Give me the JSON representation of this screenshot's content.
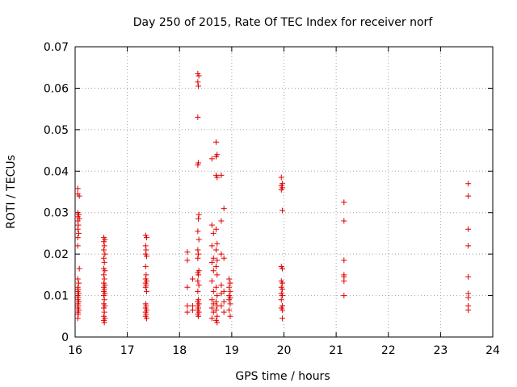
{
  "chart_data": {
    "type": "scatter",
    "title": "Day 250 of 2015, Rate Of TEC Index for receiver norf",
    "xlabel": "GPS time / hours",
    "ylabel": "ROTI / TECUs",
    "xlim": [
      16,
      24
    ],
    "ylim": [
      0,
      0.07
    ],
    "xticks": [
      16,
      17,
      18,
      19,
      20,
      21,
      22,
      23,
      24
    ],
    "xtick_labels": [
      "16",
      "17",
      "18",
      "19",
      "20",
      "21",
      "22",
      "23",
      "24"
    ],
    "yticks": [
      0,
      0.01,
      0.02,
      0.03,
      0.04,
      0.05,
      0.06,
      0.07
    ],
    "ytick_labels": [
      "0",
      "0.01",
      "0.02",
      "0.03",
      "0.04",
      "0.05",
      "0.06",
      "0.07"
    ],
    "grid": true,
    "marker": "+",
    "color": "#e00000",
    "series": [
      {
        "name": "ROTI",
        "points": [
          [
            16.05,
            0.0358
          ],
          [
            16.05,
            0.0345
          ],
          [
            16.08,
            0.034
          ],
          [
            16.05,
            0.03
          ],
          [
            16.07,
            0.0295
          ],
          [
            16.05,
            0.029
          ],
          [
            16.08,
            0.0285
          ],
          [
            16.05,
            0.028
          ],
          [
            16.06,
            0.027
          ],
          [
            16.05,
            0.026
          ],
          [
            16.07,
            0.025
          ],
          [
            16.05,
            0.024
          ],
          [
            16.05,
            0.022
          ],
          [
            16.08,
            0.0165
          ],
          [
            16.05,
            0.014
          ],
          [
            16.07,
            0.013
          ],
          [
            16.05,
            0.012
          ],
          [
            16.06,
            0.0115
          ],
          [
            16.05,
            0.011
          ],
          [
            16.07,
            0.0105
          ],
          [
            16.05,
            0.01
          ],
          [
            16.06,
            0.0095
          ],
          [
            16.05,
            0.009
          ],
          [
            16.07,
            0.0085
          ],
          [
            16.05,
            0.008
          ],
          [
            16.06,
            0.0075
          ],
          [
            16.05,
            0.007
          ],
          [
            16.07,
            0.0065
          ],
          [
            16.05,
            0.006
          ],
          [
            16.06,
            0.0055
          ],
          [
            16.05,
            0.0045
          ],
          [
            16.55,
            0.024
          ],
          [
            16.57,
            0.0235
          ],
          [
            16.55,
            0.023
          ],
          [
            16.56,
            0.022
          ],
          [
            16.55,
            0.021
          ],
          [
            16.57,
            0.02
          ],
          [
            16.55,
            0.019
          ],
          [
            16.56,
            0.018
          ],
          [
            16.55,
            0.0165
          ],
          [
            16.57,
            0.016
          ],
          [
            16.55,
            0.015
          ],
          [
            16.56,
            0.014
          ],
          [
            16.55,
            0.013
          ],
          [
            16.57,
            0.0125
          ],
          [
            16.55,
            0.012
          ],
          [
            16.56,
            0.0115
          ],
          [
            16.55,
            0.011
          ],
          [
            16.57,
            0.0105
          ],
          [
            16.55,
            0.01
          ],
          [
            16.56,
            0.009
          ],
          [
            16.55,
            0.008
          ],
          [
            16.57,
            0.0075
          ],
          [
            16.55,
            0.007
          ],
          [
            16.56,
            0.006
          ],
          [
            16.55,
            0.005
          ],
          [
            16.57,
            0.0045
          ],
          [
            16.55,
            0.004
          ],
          [
            16.56,
            0.0035
          ],
          [
            17.35,
            0.0245
          ],
          [
            17.37,
            0.024
          ],
          [
            17.35,
            0.022
          ],
          [
            17.36,
            0.021
          ],
          [
            17.35,
            0.02
          ],
          [
            17.37,
            0.0195
          ],
          [
            17.35,
            0.017
          ],
          [
            17.36,
            0.015
          ],
          [
            17.35,
            0.014
          ],
          [
            17.37,
            0.0135
          ],
          [
            17.35,
            0.013
          ],
          [
            17.36,
            0.0125
          ],
          [
            17.35,
            0.012
          ],
          [
            17.37,
            0.011
          ],
          [
            17.35,
            0.008
          ],
          [
            17.36,
            0.0075
          ],
          [
            17.35,
            0.007
          ],
          [
            17.37,
            0.0065
          ],
          [
            17.35,
            0.006
          ],
          [
            17.36,
            0.0055
          ],
          [
            17.35,
            0.005
          ],
          [
            17.37,
            0.0045
          ],
          [
            18.35,
            0.0635
          ],
          [
            18.37,
            0.063
          ],
          [
            18.35,
            0.0615
          ],
          [
            18.36,
            0.0605
          ],
          [
            18.35,
            0.053
          ],
          [
            18.36,
            0.042
          ],
          [
            18.35,
            0.0415
          ],
          [
            18.37,
            0.0295
          ],
          [
            18.36,
            0.0285
          ],
          [
            18.35,
            0.0255
          ],
          [
            18.37,
            0.0235
          ],
          [
            18.35,
            0.021
          ],
          [
            18.36,
            0.02
          ],
          [
            18.35,
            0.019
          ],
          [
            18.37,
            0.016
          ],
          [
            18.35,
            0.0155
          ],
          [
            18.36,
            0.015
          ],
          [
            18.35,
            0.0135
          ],
          [
            18.37,
            0.0125
          ],
          [
            18.35,
            0.011
          ],
          [
            18.36,
            0.009
          ],
          [
            18.35,
            0.0085
          ],
          [
            18.37,
            0.008
          ],
          [
            18.35,
            0.0075
          ],
          [
            18.36,
            0.007
          ],
          [
            18.35,
            0.0065
          ],
          [
            18.37,
            0.006
          ],
          [
            18.35,
            0.0055
          ],
          [
            18.36,
            0.005
          ],
          [
            18.15,
            0.0205
          ],
          [
            18.15,
            0.0185
          ],
          [
            18.15,
            0.012
          ],
          [
            18.15,
            0.0075
          ],
          [
            18.15,
            0.006
          ],
          [
            18.25,
            0.014
          ],
          [
            18.25,
            0.0075
          ],
          [
            18.25,
            0.0065
          ],
          [
            18.7,
            0.047
          ],
          [
            18.72,
            0.044
          ],
          [
            18.7,
            0.0435
          ],
          [
            18.62,
            0.043
          ],
          [
            18.7,
            0.039
          ],
          [
            18.72,
            0.0385
          ],
          [
            18.62,
            0.027
          ],
          [
            18.7,
            0.026
          ],
          [
            18.65,
            0.025
          ],
          [
            18.72,
            0.0225
          ],
          [
            18.62,
            0.022
          ],
          [
            18.7,
            0.021
          ],
          [
            18.65,
            0.019
          ],
          [
            18.72,
            0.0185
          ],
          [
            18.62,
            0.018
          ],
          [
            18.7,
            0.017
          ],
          [
            18.65,
            0.016
          ],
          [
            18.72,
            0.015
          ],
          [
            18.62,
            0.0135
          ],
          [
            18.7,
            0.012
          ],
          [
            18.65,
            0.011
          ],
          [
            18.72,
            0.01
          ],
          [
            18.62,
            0.009
          ],
          [
            18.7,
            0.0085
          ],
          [
            18.65,
            0.008
          ],
          [
            18.72,
            0.0075
          ],
          [
            18.62,
            0.007
          ],
          [
            18.7,
            0.0065
          ],
          [
            18.65,
            0.006
          ],
          [
            18.72,
            0.005
          ],
          [
            18.62,
            0.0045
          ],
          [
            18.7,
            0.004
          ],
          [
            18.72,
            0.0035
          ],
          [
            18.8,
            0.039
          ],
          [
            18.85,
            0.031
          ],
          [
            18.8,
            0.028
          ],
          [
            18.8,
            0.02
          ],
          [
            18.85,
            0.019
          ],
          [
            18.8,
            0.0125
          ],
          [
            18.85,
            0.011
          ],
          [
            18.8,
            0.0105
          ],
          [
            18.85,
            0.0085
          ],
          [
            18.8,
            0.0075
          ],
          [
            18.85,
            0.006
          ],
          [
            18.95,
            0.014
          ],
          [
            18.97,
            0.013
          ],
          [
            18.95,
            0.012
          ],
          [
            18.97,
            0.011
          ],
          [
            18.95,
            0.01
          ],
          [
            18.97,
            0.0095
          ],
          [
            18.95,
            0.009
          ],
          [
            18.97,
            0.008
          ],
          [
            18.95,
            0.0065
          ],
          [
            18.97,
            0.005
          ],
          [
            19.95,
            0.0385
          ],
          [
            19.97,
            0.037
          ],
          [
            19.95,
            0.0365
          ],
          [
            19.97,
            0.036
          ],
          [
            19.95,
            0.0355
          ],
          [
            19.97,
            0.0305
          ],
          [
            19.95,
            0.017
          ],
          [
            19.97,
            0.0165
          ],
          [
            19.95,
            0.0135
          ],
          [
            19.97,
            0.013
          ],
          [
            19.95,
            0.012
          ],
          [
            19.97,
            0.0115
          ],
          [
            19.95,
            0.0105
          ],
          [
            19.97,
            0.01
          ],
          [
            19.95,
            0.009
          ],
          [
            19.97,
            0.0075
          ],
          [
            19.95,
            0.007
          ],
          [
            19.97,
            0.0065
          ],
          [
            19.97,
            0.0045
          ],
          [
            21.15,
            0.0325
          ],
          [
            21.15,
            0.028
          ],
          [
            21.15,
            0.0185
          ],
          [
            21.15,
            0.015
          ],
          [
            21.15,
            0.0145
          ],
          [
            21.15,
            0.0135
          ],
          [
            21.15,
            0.01
          ],
          [
            23.53,
            0.037
          ],
          [
            23.53,
            0.034
          ],
          [
            23.53,
            0.026
          ],
          [
            23.53,
            0.022
          ],
          [
            23.53,
            0.0145
          ],
          [
            23.53,
            0.0105
          ],
          [
            23.53,
            0.0095
          ],
          [
            23.53,
            0.0075
          ],
          [
            23.53,
            0.0065
          ]
        ]
      }
    ]
  }
}
